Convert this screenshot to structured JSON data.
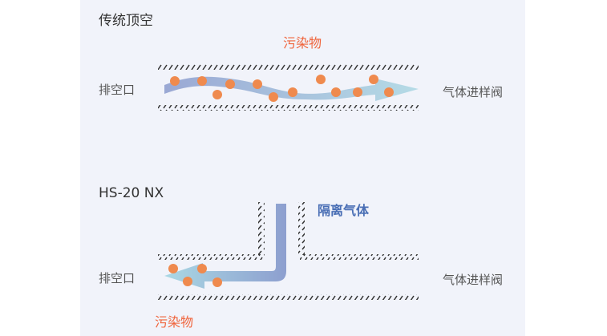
{
  "colors": {
    "contaminant": "#f0643c",
    "dot": "#ef8a4e",
    "isolation_gas": "#4a6fb5",
    "panel": "#f1f3fa"
  },
  "traditional": {
    "title": "传统顶空",
    "contaminant_label": "污染物",
    "vent_label": "排空口",
    "valve_label": "气体进样阀"
  },
  "hs20nx": {
    "title": "HS-20 NX",
    "isolation_label": "隔离气体",
    "contaminant_label": "污染物",
    "vent_label": "排空口",
    "valve_label": "气体进样阀"
  }
}
